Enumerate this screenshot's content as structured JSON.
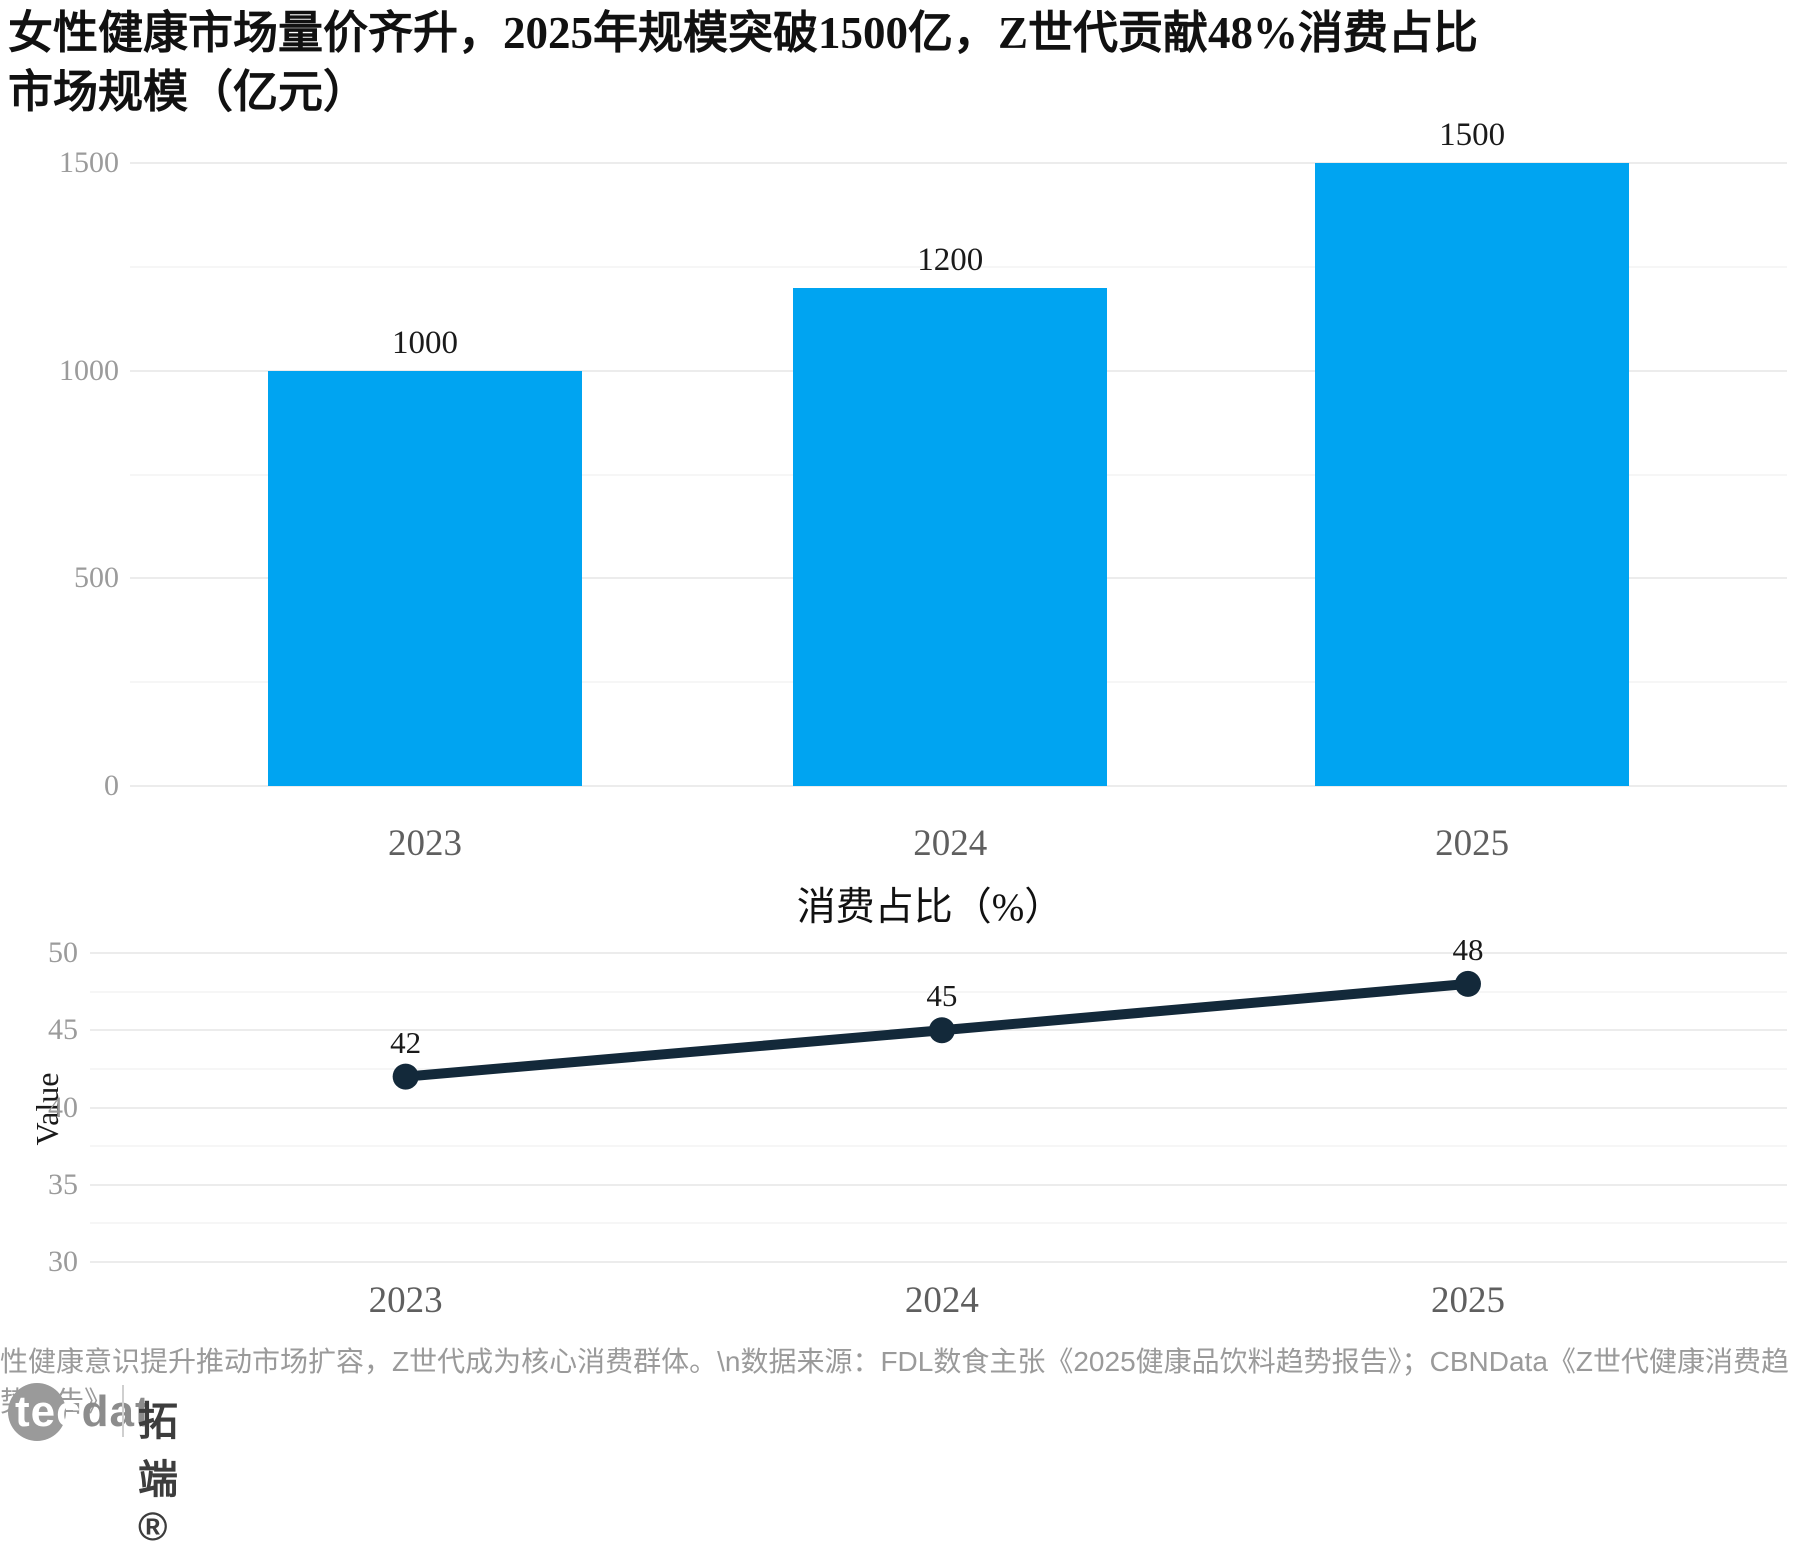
{
  "header": {
    "title_line1": "女性健康市场量价齐升，2025年规模突破1500亿，Z世代贡献48%消费占比",
    "title_line2": "市场规模（亿元）"
  },
  "chart_data": [
    {
      "type": "bar",
      "title": "市场规模（亿元）",
      "categories": [
        "2023",
        "2024",
        "2025"
      ],
      "values": [
        1000,
        1200,
        1500
      ],
      "xlabel": "",
      "ylabel": "",
      "ylim": [
        0,
        1500
      ],
      "yticks": [
        0,
        500,
        1000,
        1500
      ],
      "minor_gridlines": [
        250,
        750,
        1250
      ],
      "grid": true,
      "legend": "none",
      "bar_color": "#00A4F1",
      "data_labels": [
        "1000",
        "1200",
        "1500"
      ]
    },
    {
      "type": "line",
      "title": "消费占比（%）",
      "categories": [
        "2023",
        "2024",
        "2025"
      ],
      "values": [
        42,
        45,
        48
      ],
      "xlabel": "",
      "ylabel": "Value",
      "ylim": [
        30,
        50
      ],
      "yticks": [
        30,
        35,
        40,
        45,
        50
      ],
      "minor_gridlines": [
        32.5,
        37.5,
        42.5,
        47.5
      ],
      "grid": true,
      "legend": "none",
      "line_color": "#13293A",
      "data_labels": [
        "42",
        "45",
        "48"
      ]
    }
  ],
  "footer": {
    "note": "性健康意识提升推动市场扩容，Z世代成为核心消费群体。\\n数据来源：FDL数食主张《2025健康品饮料趋势报告》；CBNData《Z世代健康消费趋势报告》",
    "logo": {
      "latin_part1": "tec",
      "latin_part2": "dat",
      "cn_name": "拓端®"
    }
  },
  "colors": {
    "bar": "#00A4F1",
    "line": "#13293A",
    "gridline_major": "#ececec",
    "gridline_minor": "#f6f6f6",
    "axis_tick": "#9b9b9b",
    "category_label": "#5f5f5f"
  }
}
